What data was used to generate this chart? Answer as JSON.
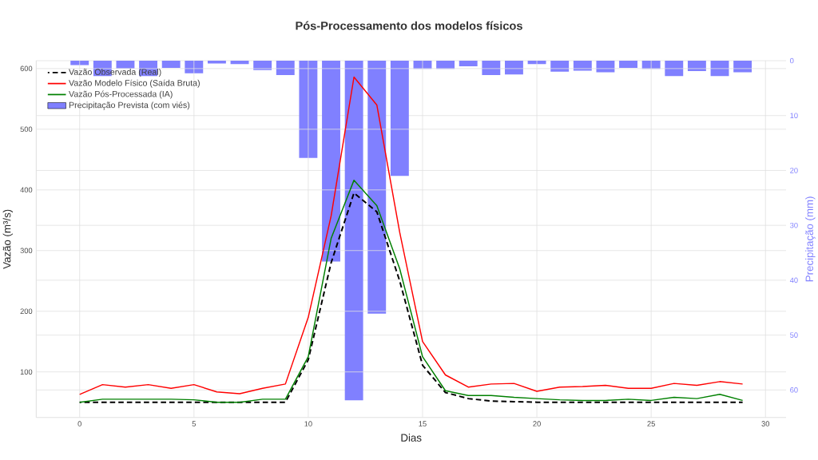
{
  "chart_data": {
    "type": "line",
    "title": "Pós-Processamento dos modelos físicos",
    "xlabel": "Dias",
    "ylabel": "Vazão (m³/s)",
    "y2label": "Precipitação (mm)",
    "x": [
      0,
      1,
      2,
      3,
      4,
      5,
      6,
      7,
      8,
      9,
      10,
      11,
      12,
      13,
      14,
      15,
      16,
      17,
      18,
      19,
      20,
      21,
      22,
      23,
      24,
      25,
      26,
      27,
      28,
      29
    ],
    "xlim": [
      -1.9,
      30.9
    ],
    "xticks": [
      0,
      5,
      10,
      15,
      20,
      25,
      30
    ],
    "ylim": [
      25,
      613
    ],
    "yticks": [
      100,
      200,
      300,
      400,
      500,
      600
    ],
    "y2lim": [
      65,
      0
    ],
    "y2ticks": [
      0,
      10,
      20,
      30,
      40,
      50,
      60
    ],
    "grid": true,
    "legend": "top left",
    "series": [
      {
        "name": "Vazão Observada (Real)",
        "color": "#000000",
        "line_style": "dashed",
        "values": [
          50,
          50,
          50,
          50,
          50,
          50,
          50,
          50,
          50,
          50,
          120,
          280,
          395,
          364,
          250,
          111,
          66,
          56,
          52,
          51,
          50,
          50,
          50,
          50,
          50,
          50,
          50,
          50,
          50,
          50
        ]
      },
      {
        "name": "Vazão Modelo Físico (Saída Bruta)",
        "color": "#ff0000",
        "line_style": "solid",
        "values": [
          63,
          79,
          75,
          79,
          73,
          79,
          67,
          64,
          73,
          80,
          190,
          357,
          586,
          540,
          330,
          150,
          95,
          75,
          80,
          81,
          68,
          75,
          76,
          78,
          73,
          73,
          81,
          78,
          84,
          80
        ]
      },
      {
        "name": "Vazão Pós-Processada (IA)",
        "color": "#008000",
        "line_style": "solid",
        "values": [
          50,
          55,
          55,
          55,
          55,
          54,
          50,
          50,
          55,
          55,
          125,
          320,
          416,
          374,
          270,
          125,
          69,
          61,
          61,
          58,
          56,
          54,
          53,
          53,
          55,
          53,
          58,
          56,
          63,
          53
        ]
      },
      {
        "name": "Precipitação Prevista (com viés)",
        "type": "bar",
        "axis": "y2",
        "color": "#8080ff",
        "values": [
          0.8,
          2.8,
          1.4,
          2.8,
          1.3,
          2.3,
          0.5,
          0.6,
          1.7,
          2.6,
          17.7,
          36.6,
          61.9,
          46.1,
          21.0,
          1.5,
          1.5,
          1.0,
          2.6,
          2.5,
          0.6,
          2.0,
          1.8,
          2.1,
          1.3,
          1.5,
          2.8,
          1.9,
          2.8,
          2.1
        ]
      }
    ]
  }
}
